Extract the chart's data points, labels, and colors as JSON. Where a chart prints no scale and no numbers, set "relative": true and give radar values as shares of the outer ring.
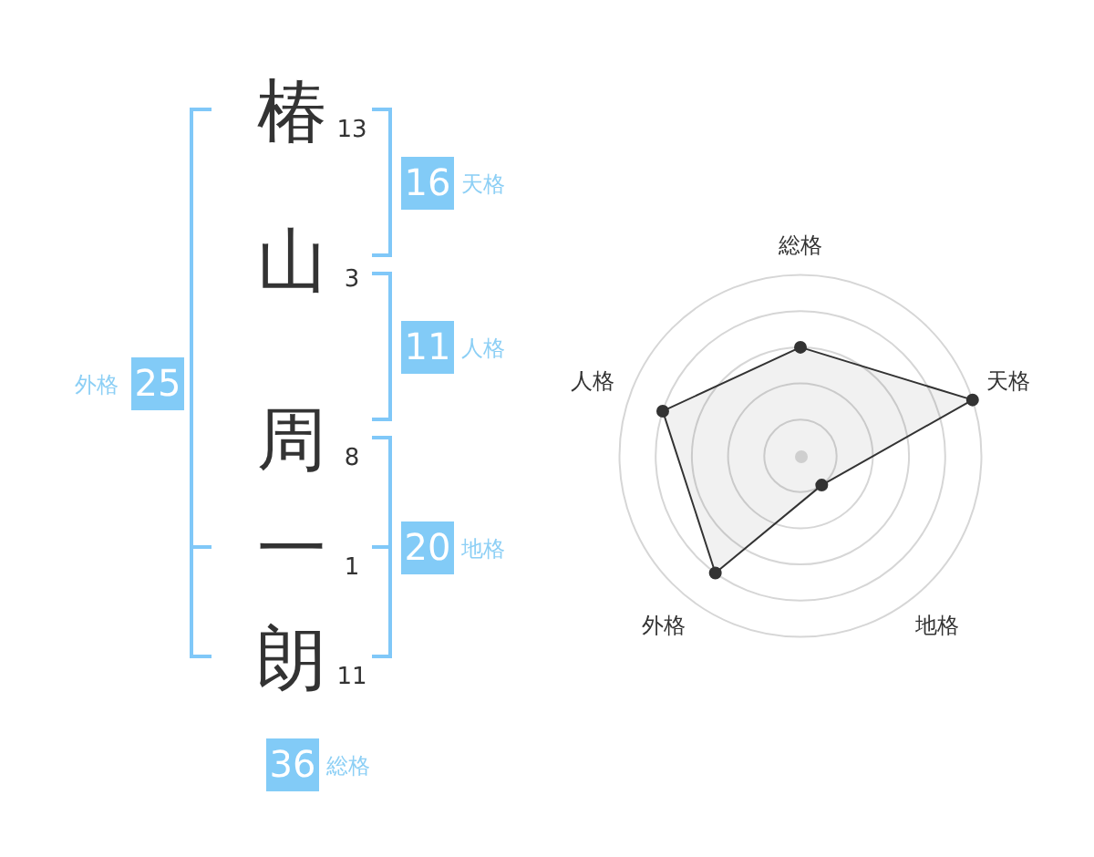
{
  "chart_data": [
    {
      "type": "other",
      "categories": [
        "椿",
        "山",
        "周",
        "一",
        "朗"
      ],
      "values": [
        13,
        3,
        8,
        1,
        11
      ],
      "data_labels": true
    },
    {
      "type": "other",
      "categories": [
        "天格",
        "人格",
        "地格",
        "外格",
        "総格"
      ],
      "values": [
        16,
        11,
        20,
        25,
        36
      ],
      "data_labels": true
    },
    {
      "type": "radar",
      "categories": [
        "総格",
        "天格",
        "地格",
        "外格",
        "人格"
      ],
      "series": [
        {
          "color": "#333333",
          "values": [
            0.6,
            1,
            0.2,
            0.8,
            0.8
          ]
        }
      ],
      "relative": true,
      "grid": true,
      "marker": "circle"
    }
  ]
}
